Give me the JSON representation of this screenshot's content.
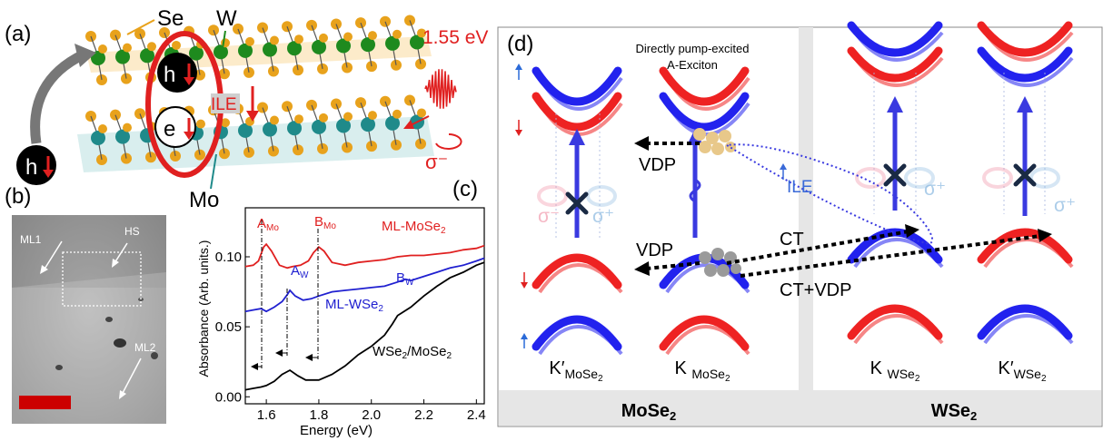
{
  "figure": {
    "panels": {
      "a": "(a)",
      "b": "(b)",
      "c": "(c)",
      "d": "(d)"
    },
    "panel_a": {
      "atom_se": "Se",
      "atom_w": "W",
      "atom_mo": "Mo",
      "photon_energy": "1.55 eV",
      "polarization": "σ⁻",
      "ile": "ILE",
      "hole": "h",
      "electron": "e",
      "colors": {
        "se": "#e8a21c",
        "w": "#1e8a1e",
        "mo": "#1f8a8a",
        "red": "#e02020"
      }
    },
    "panel_b": {
      "labels": [
        "ML1",
        "HS",
        "ML2"
      ],
      "scalebar_color": "#cc0000"
    },
    "panel_d": {
      "title_annotation_line1": "Directly pump-excited",
      "title_annotation_line2": "A-Exciton",
      "vdp_upper": "VDP",
      "vdp_lower": "VDP",
      "ct": "CT",
      "ct_vdp": "CT+VDP",
      "ile": "ILE",
      "sigma_minus": "σ⁻",
      "sigma_plus": "σ⁺",
      "valleys": [
        {
          "main": "K′",
          "sub": "MoSe",
          "sub2": "2"
        },
        {
          "main": "K ",
          "sub": "MoSe",
          "sub2": "2"
        },
        {
          "main": "K ",
          "sub": "WSe",
          "sub2": "2"
        },
        {
          "main": "K′",
          "sub": "WSe",
          "sub2": "2"
        }
      ],
      "material_left": "MoSe",
      "material_left_sub": "2",
      "material_right": "WSe",
      "material_right_sub": "2",
      "colors": {
        "spin_up": "#2222ee",
        "spin_down": "#ee2222",
        "panel_bg": "#e6e6e6"
      }
    }
  },
  "chart_data": {
    "type": "line",
    "xlabel": "Energy (eV)",
    "ylabel": "Absorbance (Arb. units.)",
    "xlim": [
      1.52,
      2.43
    ],
    "ylim": [
      -0.005,
      0.135
    ],
    "xticks": [
      "1.6",
      "1.8",
      "2.0",
      "2.2",
      "2.4"
    ],
    "yticks": [
      "0.00",
      "0.05",
      "0.10"
    ],
    "series": [
      {
        "name": "ML-MoSe2",
        "color": "#e02020",
        "x": [
          1.52,
          1.55,
          1.57,
          1.59,
          1.6,
          1.62,
          1.65,
          1.68,
          1.7,
          1.73,
          1.76,
          1.78,
          1.8,
          1.82,
          1.85,
          1.9,
          1.95,
          2.0,
          2.05,
          2.1,
          2.15,
          2.2,
          2.25,
          2.3,
          2.35,
          2.4,
          2.43
        ],
        "y": [
          0.093,
          0.094,
          0.097,
          0.107,
          0.109,
          0.104,
          0.094,
          0.092,
          0.093,
          0.094,
          0.097,
          0.103,
          0.107,
          0.104,
          0.096,
          0.094,
          0.096,
          0.097,
          0.098,
          0.1,
          0.101,
          0.101,
          0.102,
          0.103,
          0.105,
          0.106,
          0.108
        ]
      },
      {
        "name": "ML-WSe2",
        "color": "#2020d0",
        "x": [
          1.52,
          1.55,
          1.58,
          1.6,
          1.63,
          1.66,
          1.68,
          1.69,
          1.71,
          1.74,
          1.77,
          1.8,
          1.85,
          1.9,
          1.95,
          2.0,
          2.05,
          2.1,
          2.13,
          2.15,
          2.2,
          2.25,
          2.3,
          2.35,
          2.4,
          2.43
        ],
        "y": [
          0.061,
          0.062,
          0.063,
          0.061,
          0.064,
          0.068,
          0.073,
          0.076,
          0.072,
          0.069,
          0.07,
          0.072,
          0.075,
          0.076,
          0.077,
          0.078,
          0.079,
          0.082,
          0.084,
          0.083,
          0.086,
          0.089,
          0.092,
          0.094,
          0.097,
          0.099
        ]
      },
      {
        "name": "WSe2/MoSe2",
        "color": "#000000",
        "x": [
          1.52,
          1.55,
          1.58,
          1.6,
          1.63,
          1.66,
          1.69,
          1.72,
          1.75,
          1.8,
          1.85,
          1.9,
          1.95,
          2.0,
          2.05,
          2.08,
          2.1,
          2.15,
          2.2,
          2.25,
          2.3,
          2.35,
          2.4,
          2.43
        ],
        "y": [
          0.005,
          0.006,
          0.007,
          0.008,
          0.011,
          0.016,
          0.019,
          0.015,
          0.012,
          0.012,
          0.016,
          0.022,
          0.03,
          0.036,
          0.044,
          0.052,
          0.058,
          0.064,
          0.072,
          0.079,
          0.085,
          0.089,
          0.094,
          0.096
        ]
      }
    ],
    "annotations": {
      "A_Mo": {
        "text": "A",
        "sub": "Mo"
      },
      "B_Mo": {
        "text": "B",
        "sub": "Mo"
      },
      "A_W": {
        "text": "A",
        "sub": "W"
      },
      "B_W": {
        "text": "B",
        "sub": "W"
      },
      "label_mose2": {
        "text": "ML-MoSe",
        "sub": "2"
      },
      "label_wse2": {
        "text": "ML-WSe",
        "sub": "2"
      },
      "label_hs": {
        "text": "WSe",
        "sub": "2",
        "rest": "/MoSe",
        "sub2": "2"
      }
    }
  }
}
